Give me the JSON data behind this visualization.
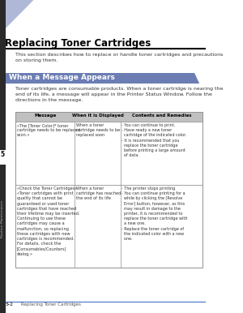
{
  "title": "Replacing Toner Cartridges",
  "subtitle": "This section describes how to replace or handle toner cartridges and precautions\non storing them.",
  "section_header": "When a Message Appears",
  "section_body": "Toner cartridges are consumable products. When a toner cartridge is nearing the\nend of its life, a message will appear in the Printer Status Window. Follow the\ndirections in the message.",
  "table_headers": [
    "Message",
    "When it is Displayed",
    "Contents and Remedies"
  ],
  "row1_message": "«The [Toner Color]* toner\ncartridge needs to be replaced\nsoon.»",
  "row1_when": "When a toner\ncartridge needs to be\nreplaced soon",
  "row1_contents": "- You can continue to print.\n- Have ready a new toner\n  cartridge of the indicated color.\n- It is recommended that you\n  replace the toner cartridge\n  before printing a large amount\n  of data.",
  "row2_message": "«Check the Toner Cartridges»\n«Toner cartridges with print\nquality that cannot be\nguaranteed or used toner\ncartridges that have reached\ntheir lifetime may be inserted.\nContinuing to use these\ncartridges may cause a\nmalfunction, so replacing\nthese cartridges with new\ncartridges is recommended.\nFor details, check the\n[Consumables/Counters]\ndialog.»",
  "row2_when": "When a toner\ncartridge has reached\nthe end of its life",
  "row2_contents": "- The printer stops printing\n- You can continue printing for a\n  while by clicking the [Resolve\n  Error] button, however, as this\n  may result in damage to the\n  printer, it is recommended to\n  replace the toner cartridge with\n  a new one.\n- Replace the toner cartridge of\n  the indicated color with a new\n  one.",
  "footer_left": "5-2",
  "footer_right": "Replacing Toner Cartridges",
  "chapter_num": "5",
  "sidebar_text": "Routine Maintenance",
  "bg_color": "#ffffff",
  "title_color": "#000000",
  "section_header_bg": "#6b7db3",
  "section_header_text": "#ffffff",
  "table_header_bg": "#c0c0c0",
  "table_border_color": "#909090",
  "triangle_color": "#b0b8d8",
  "sidebar_bg": "#2a2a2a",
  "footer_line_color": "#4472c4"
}
